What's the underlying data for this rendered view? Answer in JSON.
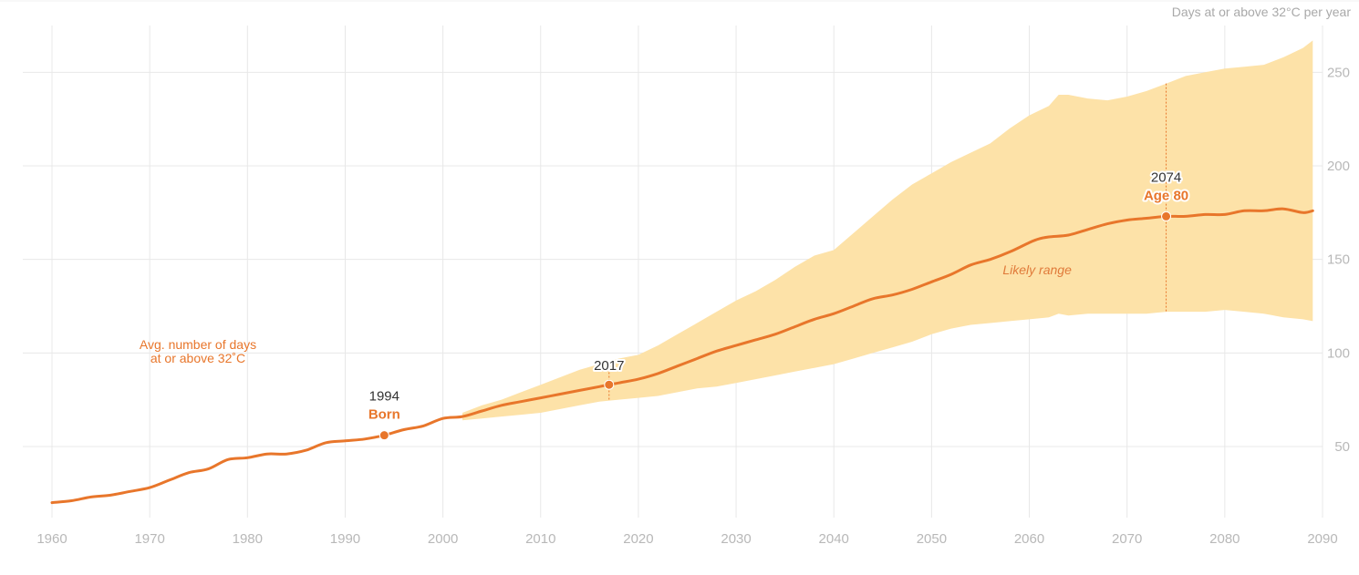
{
  "chart_data": {
    "type": "area",
    "unit_label": "Days at or above 32°C per year",
    "series_label_lines": [
      "Avg. number of days",
      "at or above 32˚C"
    ],
    "band_label": "Likely range",
    "xlim": [
      1960,
      2090
    ],
    "ylim": [
      12,
      275
    ],
    "x_ticks": [
      1960,
      1970,
      1980,
      1990,
      2000,
      2010,
      2020,
      2030,
      2040,
      2050,
      2060,
      2070,
      2080,
      2090
    ],
    "y_ticks": [
      50,
      100,
      150,
      200,
      250
    ],
    "grid": true,
    "colors": {
      "line": "#e8762b",
      "band": "#fde2a8",
      "grid": "#e8e8e8",
      "tick": "#b8b8b8"
    },
    "series": [
      {
        "name": "Avg. number of days at or above 32˚C",
        "x": [
          1960,
          1962,
          1964,
          1966,
          1968,
          1970,
          1972,
          1974,
          1976,
          1978,
          1980,
          1982,
          1984,
          1986,
          1988,
          1990,
          1992,
          1994,
          1996,
          1998,
          2000,
          2002,
          2004,
          2006,
          2008,
          2010,
          2012,
          2014,
          2016,
          2017,
          2018,
          2020,
          2022,
          2024,
          2026,
          2028,
          2030,
          2032,
          2034,
          2036,
          2038,
          2040,
          2042,
          2044,
          2046,
          2048,
          2050,
          2052,
          2054,
          2056,
          2058,
          2060,
          2061,
          2062,
          2064,
          2066,
          2068,
          2070,
          2072,
          2074,
          2076,
          2078,
          2080,
          2082,
          2084,
          2086,
          2088,
          2089
        ],
        "values": [
          20,
          21,
          23,
          24,
          26,
          28,
          32,
          36,
          38,
          43,
          44,
          46,
          46,
          48,
          52,
          53,
          54,
          56,
          59,
          61,
          65,
          66,
          69,
          72,
          74,
          76,
          78,
          80,
          82,
          83,
          84,
          86,
          89,
          93,
          97,
          101,
          104,
          107,
          110,
          114,
          118,
          121,
          125,
          129,
          131,
          134,
          138,
          142,
          147,
          150,
          154,
          159,
          161,
          162,
          163,
          166,
          169,
          171,
          172,
          173,
          173,
          174,
          174,
          176,
          176,
          177,
          175,
          176
        ]
      }
    ],
    "likely_range": {
      "x": [
        2002,
        2004,
        2006,
        2008,
        2010,
        2012,
        2014,
        2016,
        2018,
        2020,
        2022,
        2024,
        2026,
        2028,
        2030,
        2032,
        2034,
        2036,
        2038,
        2040,
        2042,
        2044,
        2046,
        2048,
        2050,
        2052,
        2054,
        2056,
        2058,
        2060,
        2062,
        2063,
        2064,
        2066,
        2068,
        2070,
        2072,
        2074,
        2076,
        2078,
        2080,
        2082,
        2084,
        2086,
        2088,
        2089
      ],
      "lower": [
        64,
        65,
        66,
        67,
        68,
        70,
        72,
        74,
        75,
        76,
        77,
        79,
        81,
        82,
        84,
        86,
        88,
        90,
        92,
        94,
        97,
        100,
        103,
        106,
        110,
        113,
        115,
        116,
        117,
        118,
        119,
        121,
        120,
        121,
        121,
        121,
        121,
        122,
        122,
        122,
        123,
        122,
        121,
        119,
        118,
        117
      ],
      "upper": [
        68,
        72,
        75,
        79,
        83,
        87,
        91,
        94,
        97,
        99,
        104,
        110,
        116,
        122,
        128,
        133,
        139,
        146,
        152,
        155,
        164,
        173,
        182,
        190,
        196,
        202,
        207,
        212,
        220,
        227,
        232,
        238,
        238,
        236,
        235,
        237,
        240,
        244,
        248,
        250,
        252,
        253,
        254,
        258,
        263,
        267
      ]
    },
    "annotations": [
      {
        "x": 1994,
        "y": 56,
        "year": "1994",
        "label": "Born",
        "position": "above",
        "marker": true
      },
      {
        "x": 2017,
        "y": 83,
        "year": "2017",
        "label": "",
        "position": "above",
        "marker": true,
        "dotted_range": true
      },
      {
        "x": 2074,
        "y": 173,
        "year": "2074",
        "label": "Age 80",
        "position": "above",
        "marker": true,
        "dotted_range": true
      }
    ]
  }
}
